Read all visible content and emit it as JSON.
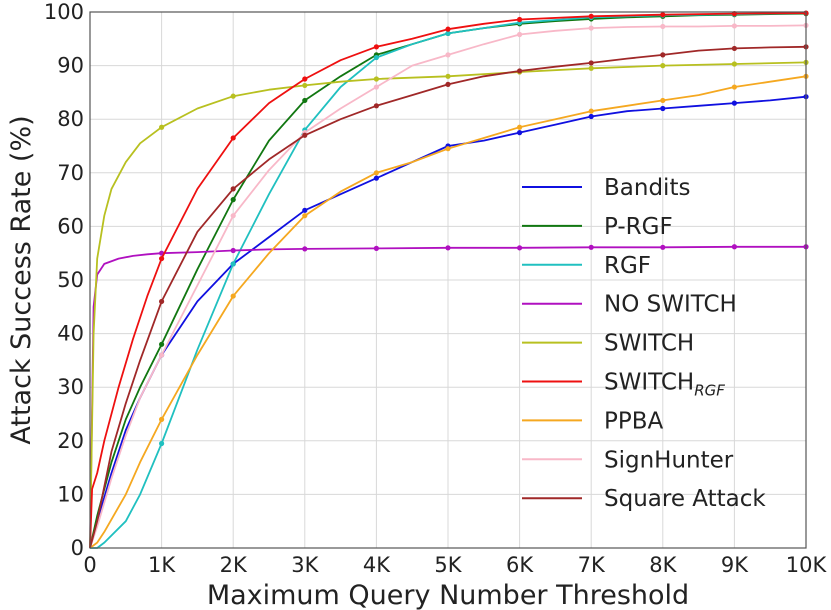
{
  "chart_data": {
    "type": "line",
    "xlabel": "Maximum Query Number Threshold",
    "ylabel": "Attack Success Rate (%)",
    "xlim": [
      0,
      10000
    ],
    "ylim": [
      0,
      100
    ],
    "xticks": [
      0,
      1000,
      2000,
      3000,
      4000,
      5000,
      6000,
      7000,
      8000,
      9000,
      10000
    ],
    "xtick_labels": [
      "0",
      "1K",
      "2K",
      "3K",
      "4K",
      "5K",
      "6K",
      "7K",
      "8K",
      "9K",
      "10K"
    ],
    "yticks": [
      0,
      10,
      20,
      30,
      40,
      50,
      60,
      70,
      80,
      90,
      100
    ],
    "ytick_labels": [
      "0",
      "10",
      "20",
      "30",
      "40",
      "50",
      "60",
      "70",
      "80",
      "90",
      "100"
    ],
    "grid": true,
    "legend_position": "right",
    "series": [
      {
        "name": "Bandits",
        "color": "#1010e0",
        "x": [
          0,
          100,
          300,
          500,
          700,
          1000,
          1500,
          2000,
          2500,
          3000,
          3500,
          4000,
          4500,
          5000,
          5500,
          6000,
          6500,
          7000,
          7500,
          8000,
          8500,
          9000,
          9500,
          10000
        ],
        "y": [
          0,
          5,
          14,
          22,
          28,
          36,
          46,
          53,
          58,
          63,
          66,
          69,
          72,
          75,
          76,
          77.5,
          79,
          80.5,
          81.5,
          82,
          82.5,
          83,
          83.5,
          84.2
        ]
      },
      {
        "name": "P-RGF",
        "color": "#117711",
        "x": [
          0,
          100,
          300,
          500,
          700,
          1000,
          1500,
          2000,
          2500,
          3000,
          3500,
          4000,
          4500,
          5000,
          5500,
          6000,
          6500,
          7000,
          7500,
          8000,
          8500,
          9000,
          9500,
          10000
        ],
        "y": [
          0,
          6,
          16,
          24,
          30,
          38,
          52,
          65,
          76,
          83.5,
          88,
          92,
          94,
          96,
          97,
          97.8,
          98.3,
          98.7,
          99,
          99.2,
          99.4,
          99.5,
          99.6,
          99.7
        ]
      },
      {
        "name": "RGF",
        "color": "#20c0c0",
        "x": [
          0,
          100,
          200,
          500,
          700,
          1000,
          1500,
          2000,
          2500,
          3000,
          3500,
          4000,
          4500,
          5000,
          5500,
          6000,
          6500,
          7000,
          7500,
          8000,
          8500,
          9000,
          9500,
          10000
        ],
        "y": [
          0,
          0,
          1,
          5,
          10,
          19.5,
          37,
          53,
          66,
          78,
          86,
          91.5,
          94,
          96,
          97,
          98,
          98.5,
          99,
          99.2,
          99.4,
          99.5,
          99.6,
          99.7,
          99.8
        ]
      },
      {
        "name": "NO SWITCH",
        "color": "#b010c0",
        "x": [
          0,
          50,
          100,
          200,
          400,
          600,
          800,
          1000,
          1500,
          2000,
          2500,
          3000,
          4000,
          5000,
          6000,
          7000,
          8000,
          9000,
          10000
        ],
        "y": [
          0,
          45,
          51,
          53,
          54,
          54.5,
          54.8,
          55,
          55.2,
          55.5,
          55.7,
          55.8,
          55.9,
          56,
          56,
          56.1,
          56.1,
          56.2,
          56.2
        ]
      },
      {
        "name": "SWITCH",
        "color": "#b8c020",
        "x": [
          0,
          50,
          100,
          200,
          300,
          500,
          700,
          1000,
          1500,
          2000,
          2500,
          3000,
          3500,
          4000,
          5000,
          6000,
          7000,
          8000,
          9000,
          10000
        ],
        "y": [
          0,
          40,
          54,
          62,
          67,
          72,
          75.5,
          78.5,
          82,
          84.3,
          85.5,
          86.3,
          87,
          87.5,
          88,
          88.8,
          89.5,
          90,
          90.3,
          90.6
        ]
      },
      {
        "name": "SWITCH",
        "name_subscript": "RGF",
        "color": "#ee1010",
        "x": [
          0,
          30,
          100,
          200,
          400,
          600,
          800,
          1000,
          1500,
          2000,
          2500,
          3000,
          3500,
          4000,
          4500,
          5000,
          5500,
          6000,
          7000,
          8000,
          9000,
          10000
        ],
        "y": [
          0,
          11,
          14,
          20,
          30,
          39,
          47,
          54,
          67,
          76.5,
          83,
          87.5,
          91,
          93.5,
          95,
          96.8,
          97.8,
          98.6,
          99.2,
          99.5,
          99.7,
          99.8
        ]
      },
      {
        "name": "PPBA",
        "color": "#f5a820",
        "x": [
          0,
          100,
          200,
          500,
          700,
          1000,
          1500,
          2000,
          2500,
          3000,
          3500,
          4000,
          4500,
          5000,
          5500,
          6000,
          6500,
          7000,
          7500,
          8000,
          8500,
          9000,
          9500,
          10000
        ],
        "y": [
          0,
          1,
          3,
          10,
          16,
          24,
          36,
          47,
          55,
          62,
          66.5,
          70,
          72,
          74.5,
          76.5,
          78.5,
          80,
          81.5,
          82.5,
          83.5,
          84.5,
          86,
          87,
          88
        ]
      },
      {
        "name": "SignHunter",
        "color": "#f8b8c8",
        "x": [
          0,
          100,
          300,
          500,
          700,
          1000,
          1500,
          2000,
          2500,
          3000,
          3500,
          4000,
          4500,
          5000,
          5500,
          6000,
          6500,
          7000,
          7500,
          8000,
          8500,
          9000,
          9500,
          10000
        ],
        "y": [
          0,
          4,
          13,
          21,
          28,
          36,
          49,
          62,
          70.5,
          77.5,
          82,
          86,
          90,
          92,
          94,
          95.8,
          96.5,
          97,
          97.2,
          97.3,
          97.3,
          97.4,
          97.4,
          97.5
        ]
      },
      {
        "name": "Square Attack",
        "color": "#a02828",
        "x": [
          0,
          100,
          300,
          500,
          700,
          1000,
          1500,
          2000,
          2500,
          3000,
          3500,
          4000,
          4500,
          5000,
          5500,
          6000,
          6500,
          7000,
          7500,
          8000,
          8500,
          9000,
          9500,
          10000
        ],
        "y": [
          0,
          5,
          18,
          27,
          35,
          46,
          59,
          67,
          72.5,
          77,
          80,
          82.5,
          84.5,
          86.5,
          88,
          89,
          89.8,
          90.5,
          91.3,
          92,
          92.8,
          93.2,
          93.4,
          93.5
        ]
      }
    ]
  }
}
